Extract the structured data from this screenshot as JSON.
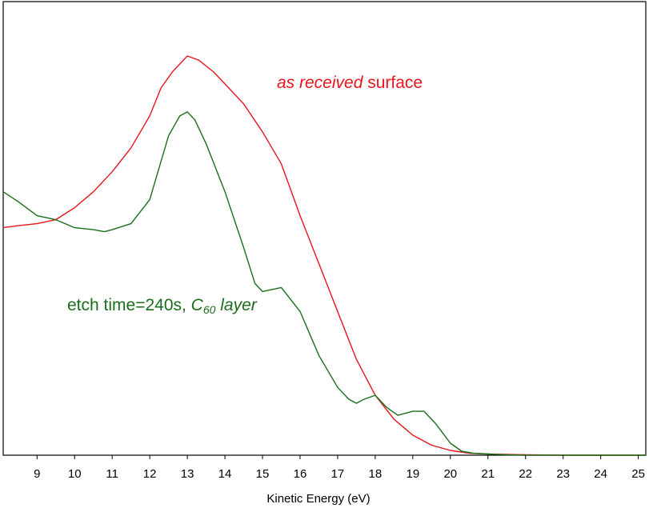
{
  "chart_data": {
    "type": "line",
    "xlabel": "Kinetic Energy (eV)",
    "ylabel": "",
    "xlim": [
      8.1,
      25.2
    ],
    "ylim": [
      0,
      1
    ],
    "x_ticks": [
      "9",
      "10",
      "11",
      "12",
      "13",
      "14",
      "15",
      "16",
      "17",
      "18",
      "19",
      "20",
      "21",
      "22",
      "23",
      "24",
      "25"
    ],
    "grid": false,
    "legend": "none",
    "annotations": {
      "red": {
        "italic": "as received",
        "normal": " surface",
        "color": "#e8141c"
      },
      "green": {
        "normal": "etch time=240s, ",
        "italic_base": "C",
        "italic_sub": "60",
        "italic_tail": " layer",
        "color": "#1a6e1a"
      }
    },
    "series": [
      {
        "color": "#e8141c",
        "x": [
          8.1,
          8.5,
          9.0,
          9.5,
          10.0,
          10.5,
          11.0,
          11.5,
          12.0,
          12.3,
          12.6,
          12.9,
          13.0,
          13.3,
          13.7,
          14.0,
          14.5,
          15.0,
          15.5,
          16.0,
          16.5,
          17.0,
          17.5,
          18.0,
          18.5,
          19.0,
          19.5,
          20.0,
          20.5,
          21.0,
          21.5,
          22.0,
          23.0,
          25.2
        ],
        "y": [
          0.57,
          0.575,
          0.58,
          0.59,
          0.62,
          0.66,
          0.71,
          0.77,
          0.85,
          0.92,
          0.96,
          0.99,
          1.0,
          0.99,
          0.96,
          0.93,
          0.88,
          0.81,
          0.73,
          0.6,
          0.48,
          0.36,
          0.24,
          0.15,
          0.09,
          0.05,
          0.025,
          0.012,
          0.005,
          0.003,
          0.002,
          0.001,
          0.0,
          0.0
        ]
      },
      {
        "color": "#1a6e1a",
        "x": [
          8.1,
          8.5,
          9.0,
          9.5,
          10.0,
          10.5,
          10.8,
          11.0,
          11.5,
          12.0,
          12.5,
          12.8,
          13.0,
          13.2,
          13.5,
          14.0,
          14.5,
          14.8,
          15.0,
          15.5,
          16.0,
          16.5,
          17.0,
          17.3,
          17.5,
          17.7,
          18.0,
          18.3,
          18.6,
          19.0,
          19.3,
          19.6,
          20.0,
          20.3,
          20.6,
          21.0,
          21.5,
          22.0,
          23.0,
          25.2
        ],
        "y": [
          0.66,
          0.635,
          0.6,
          0.59,
          0.57,
          0.565,
          0.56,
          0.565,
          0.58,
          0.64,
          0.8,
          0.85,
          0.86,
          0.84,
          0.78,
          0.66,
          0.52,
          0.43,
          0.41,
          0.42,
          0.36,
          0.25,
          0.17,
          0.14,
          0.13,
          0.14,
          0.15,
          0.12,
          0.1,
          0.11,
          0.11,
          0.08,
          0.03,
          0.01,
          0.005,
          0.003,
          0.001,
          0.0,
          0.0,
          0.0
        ]
      }
    ]
  }
}
